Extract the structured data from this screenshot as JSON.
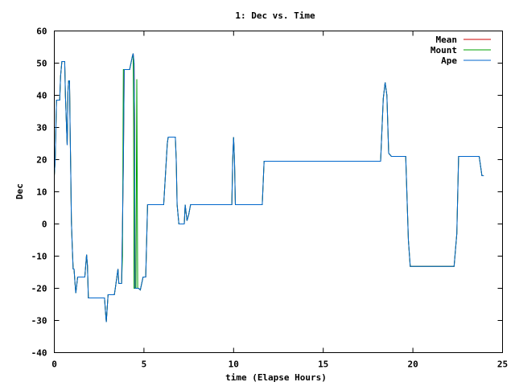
{
  "chart_data": {
    "type": "line",
    "title": "1: Dec vs. Time",
    "xlabel": "time (Elapse Hours)",
    "ylabel": "Dec",
    "xlim": [
      0,
      25
    ],
    "ylim": [
      -40,
      60
    ],
    "xticks": [
      0,
      5,
      10,
      15,
      20,
      25
    ],
    "yticks": [
      -40,
      -30,
      -20,
      -10,
      0,
      10,
      20,
      30,
      40,
      50,
      60
    ],
    "grid": false,
    "legend_position": "top-right",
    "series": [
      {
        "name": "Mean",
        "color": "#cc0000",
        "points": [
          [
            0,
            15
          ],
          [
            0.05,
            20
          ],
          [
            0.12,
            38.5
          ],
          [
            0.3,
            38.5
          ],
          [
            0.35,
            46
          ],
          [
            0.42,
            50.5
          ],
          [
            0.58,
            50.5
          ],
          [
            0.62,
            40
          ],
          [
            0.68,
            30
          ],
          [
            0.72,
            24.5
          ],
          [
            0.76,
            41
          ],
          [
            0.8,
            44.5
          ],
          [
            0.85,
            44.5
          ],
          [
            0.88,
            30
          ],
          [
            0.92,
            15
          ],
          [
            0.95,
            1
          ],
          [
            1.0,
            -7
          ],
          [
            1.05,
            -14
          ],
          [
            1.1,
            -14
          ],
          [
            1.15,
            -18
          ],
          [
            1.2,
            -21.5
          ],
          [
            1.3,
            -16.5
          ],
          [
            1.6,
            -16.5
          ],
          [
            1.7,
            -16.5
          ],
          [
            1.75,
            -13
          ],
          [
            1.8,
            -9.5
          ],
          [
            1.85,
            -13
          ],
          [
            1.9,
            -23
          ],
          [
            2.8,
            -23
          ],
          [
            2.85,
            -27
          ],
          [
            2.9,
            -30.5
          ],
          [
            3.0,
            -22
          ],
          [
            3.1,
            -22
          ],
          [
            3.35,
            -22
          ],
          [
            3.4,
            -20
          ],
          [
            3.5,
            -16
          ],
          [
            3.55,
            -14
          ],
          [
            3.6,
            -18.5
          ],
          [
            3.75,
            -18.5
          ],
          [
            3.85,
            18
          ],
          [
            3.9,
            48
          ],
          [
            4.2,
            48
          ],
          [
            4.35,
            52
          ],
          [
            4.4,
            53
          ],
          [
            4.45,
            50
          ],
          [
            4.48,
            30
          ],
          [
            4.5,
            -20
          ],
          [
            4.55,
            -20
          ],
          [
            4.7,
            -20
          ],
          [
            4.8,
            -20.5
          ],
          [
            4.95,
            -16.5
          ],
          [
            5.1,
            -16.5
          ],
          [
            5.2,
            6
          ],
          [
            6.1,
            6
          ],
          [
            6.3,
            25
          ],
          [
            6.35,
            27
          ],
          [
            6.75,
            27
          ],
          [
            6.8,
            20
          ],
          [
            6.85,
            6
          ],
          [
            6.95,
            0
          ],
          [
            7.25,
            0
          ],
          [
            7.3,
            6
          ],
          [
            7.4,
            1
          ],
          [
            7.5,
            3
          ],
          [
            7.6,
            6
          ],
          [
            9.5,
            6
          ],
          [
            9.9,
            6
          ],
          [
            9.95,
            20
          ],
          [
            10.0,
            27
          ],
          [
            10.05,
            20
          ],
          [
            10.1,
            6
          ],
          [
            11.5,
            6
          ],
          [
            11.6,
            6
          ],
          [
            11.7,
            19.5
          ],
          [
            18.2,
            19.5
          ],
          [
            18.35,
            39
          ],
          [
            18.45,
            44
          ],
          [
            18.55,
            40
          ],
          [
            18.65,
            22
          ],
          [
            18.8,
            21
          ],
          [
            18.85,
            21
          ],
          [
            19.6,
            21
          ],
          [
            19.75,
            -5
          ],
          [
            19.85,
            -13.2
          ],
          [
            22.3,
            -13.2
          ],
          [
            22.45,
            -3
          ],
          [
            22.55,
            21
          ],
          [
            23.7,
            21
          ],
          [
            23.85,
            15
          ],
          [
            23.95,
            15
          ]
        ]
      },
      {
        "name": "Mount",
        "color": "#00a000",
        "points": [
          [
            0,
            15
          ],
          [
            0.05,
            20
          ],
          [
            0.12,
            38.5
          ],
          [
            0.3,
            38.5
          ],
          [
            0.35,
            46
          ],
          [
            0.42,
            50.5
          ],
          [
            0.58,
            50.5
          ],
          [
            0.62,
            40
          ],
          [
            0.68,
            30
          ],
          [
            0.72,
            24.5
          ],
          [
            0.76,
            41
          ],
          [
            0.8,
            44.5
          ],
          [
            0.85,
            44.5
          ],
          [
            0.88,
            30
          ],
          [
            0.92,
            15
          ],
          [
            0.95,
            1
          ],
          [
            1.0,
            -7
          ],
          [
            1.05,
            -14
          ],
          [
            1.1,
            -14
          ],
          [
            1.15,
            -18
          ],
          [
            1.2,
            -21.5
          ],
          [
            1.3,
            -16.5
          ],
          [
            1.6,
            -16.5
          ],
          [
            1.7,
            -16.5
          ],
          [
            1.75,
            -13
          ],
          [
            1.8,
            -9.5
          ],
          [
            1.85,
            -13
          ],
          [
            1.9,
            -23
          ],
          [
            2.8,
            -23
          ],
          [
            2.85,
            -27
          ],
          [
            2.9,
            -30.5
          ],
          [
            3.0,
            -22
          ],
          [
            3.1,
            -22
          ],
          [
            3.35,
            -22
          ],
          [
            3.4,
            -20
          ],
          [
            3.5,
            -16
          ],
          [
            3.55,
            -14
          ],
          [
            3.6,
            -18.5
          ],
          [
            3.75,
            -18.5
          ],
          [
            3.8,
            -10
          ],
          [
            3.85,
            48
          ],
          [
            4.2,
            48
          ],
          [
            4.35,
            52
          ],
          [
            4.4,
            53
          ],
          [
            4.42,
            35
          ],
          [
            4.45,
            -20
          ],
          [
            4.55,
            -20
          ],
          [
            4.6,
            45
          ],
          [
            4.65,
            -20
          ],
          [
            4.7,
            -20
          ],
          [
            4.8,
            -20.5
          ],
          [
            4.95,
            -16.5
          ],
          [
            5.1,
            -16.5
          ],
          [
            5.2,
            6
          ],
          [
            6.1,
            6
          ],
          [
            6.3,
            25
          ],
          [
            6.35,
            27
          ],
          [
            6.75,
            27
          ],
          [
            6.8,
            20
          ],
          [
            6.85,
            6
          ],
          [
            6.95,
            0
          ],
          [
            7.25,
            0
          ],
          [
            7.3,
            6
          ],
          [
            7.4,
            1
          ],
          [
            7.5,
            3
          ],
          [
            7.6,
            6
          ],
          [
            9.5,
            6
          ],
          [
            9.9,
            6
          ],
          [
            9.95,
            20
          ],
          [
            10.0,
            27
          ],
          [
            10.05,
            20
          ],
          [
            10.1,
            6
          ],
          [
            11.5,
            6
          ],
          [
            11.6,
            6
          ],
          [
            11.7,
            19.5
          ],
          [
            18.2,
            19.5
          ],
          [
            18.35,
            39
          ],
          [
            18.45,
            44
          ],
          [
            18.55,
            40
          ],
          [
            18.65,
            22
          ],
          [
            18.8,
            21
          ],
          [
            18.85,
            21
          ],
          [
            19.6,
            21
          ],
          [
            19.75,
            -5
          ],
          [
            19.85,
            -13.2
          ],
          [
            22.3,
            -13.2
          ],
          [
            22.45,
            -3
          ],
          [
            22.55,
            21
          ],
          [
            23.7,
            21
          ],
          [
            23.85,
            15
          ],
          [
            23.95,
            15
          ]
        ]
      },
      {
        "name": "Ape",
        "color": "#0066cc",
        "points": [
          [
            0,
            15
          ],
          [
            0.05,
            20
          ],
          [
            0.12,
            38.5
          ],
          [
            0.3,
            38.5
          ],
          [
            0.35,
            46
          ],
          [
            0.42,
            50.5
          ],
          [
            0.58,
            50.5
          ],
          [
            0.62,
            40
          ],
          [
            0.68,
            30
          ],
          [
            0.72,
            24.5
          ],
          [
            0.76,
            41
          ],
          [
            0.8,
            44.5
          ],
          [
            0.85,
            44.5
          ],
          [
            0.88,
            30
          ],
          [
            0.92,
            15
          ],
          [
            0.95,
            1
          ],
          [
            1.0,
            -7
          ],
          [
            1.05,
            -14
          ],
          [
            1.1,
            -14
          ],
          [
            1.15,
            -18
          ],
          [
            1.2,
            -21.5
          ],
          [
            1.3,
            -16.5
          ],
          [
            1.6,
            -16.5
          ],
          [
            1.7,
            -16.5
          ],
          [
            1.75,
            -13
          ],
          [
            1.8,
            -9.5
          ],
          [
            1.85,
            -13
          ],
          [
            1.9,
            -23
          ],
          [
            2.8,
            -23
          ],
          [
            2.85,
            -27
          ],
          [
            2.9,
            -30.5
          ],
          [
            3.0,
            -22
          ],
          [
            3.1,
            -22
          ],
          [
            3.35,
            -22
          ],
          [
            3.4,
            -20
          ],
          [
            3.5,
            -16
          ],
          [
            3.55,
            -14
          ],
          [
            3.6,
            -18.5
          ],
          [
            3.75,
            -18.5
          ],
          [
            3.85,
            18
          ],
          [
            3.9,
            48
          ],
          [
            4.2,
            48
          ],
          [
            4.35,
            52
          ],
          [
            4.4,
            53
          ],
          [
            4.45,
            50
          ],
          [
            4.48,
            30
          ],
          [
            4.5,
            -20
          ],
          [
            4.55,
            -20
          ],
          [
            4.7,
            -20
          ],
          [
            4.8,
            -20.5
          ],
          [
            4.95,
            -16.5
          ],
          [
            5.1,
            -16.5
          ],
          [
            5.2,
            6
          ],
          [
            6.1,
            6
          ],
          [
            6.3,
            25
          ],
          [
            6.35,
            27
          ],
          [
            6.75,
            27
          ],
          [
            6.8,
            20
          ],
          [
            6.85,
            6
          ],
          [
            6.95,
            0
          ],
          [
            7.25,
            0
          ],
          [
            7.3,
            6
          ],
          [
            7.4,
            1
          ],
          [
            7.5,
            3
          ],
          [
            7.6,
            6
          ],
          [
            9.5,
            6
          ],
          [
            9.9,
            6
          ],
          [
            9.95,
            20
          ],
          [
            10.0,
            27
          ],
          [
            10.05,
            20
          ],
          [
            10.1,
            6
          ],
          [
            11.5,
            6
          ],
          [
            11.6,
            6
          ],
          [
            11.7,
            19.5
          ],
          [
            18.2,
            19.5
          ],
          [
            18.35,
            39
          ],
          [
            18.45,
            44
          ],
          [
            18.55,
            40
          ],
          [
            18.65,
            22
          ],
          [
            18.8,
            21
          ],
          [
            18.85,
            21
          ],
          [
            19.6,
            21
          ],
          [
            19.75,
            -5
          ],
          [
            19.85,
            -13.2
          ],
          [
            22.3,
            -13.2
          ],
          [
            22.45,
            -3
          ],
          [
            22.55,
            21
          ],
          [
            23.7,
            21
          ],
          [
            23.85,
            15
          ],
          [
            23.95,
            15
          ]
        ]
      }
    ]
  }
}
